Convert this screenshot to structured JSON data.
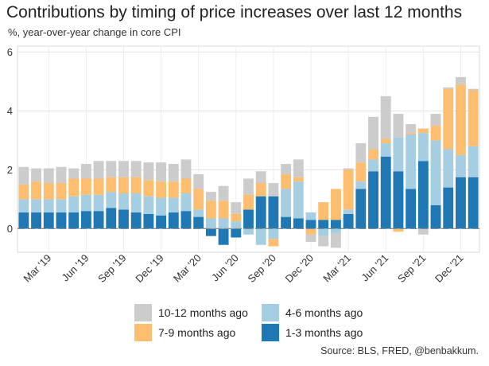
{
  "chart_data": {
    "type": "bar",
    "stacked": true,
    "title": "Contributions by timing of price increases over last 12 months",
    "subtitle": "%, year-over-year change in core CPI",
    "source": "Source: BLS, FRED, @benbakkum.",
    "ylim": [
      -0.8,
      6.2
    ],
    "yticks": [
      0,
      2,
      4,
      6
    ],
    "grid": true,
    "legend_position": "bottom",
    "x_tick_labels": [
      {
        "label": "Mar '19",
        "index": 2
      },
      {
        "label": "Jun '19",
        "index": 5
      },
      {
        "label": "Sep '19",
        "index": 8
      },
      {
        "label": "Dec '19",
        "index": 11
      },
      {
        "label": "Mar '20",
        "index": 14
      },
      {
        "label": "Jun '20",
        "index": 17
      },
      {
        "label": "Sep '20",
        "index": 20
      },
      {
        "label": "Dec '20",
        "index": 23
      },
      {
        "label": "Mar '21",
        "index": 26
      },
      {
        "label": "Jun '21",
        "index": 29
      },
      {
        "label": "Sep '21",
        "index": 32
      },
      {
        "label": "Dec '21",
        "index": 35
      }
    ],
    "categories": [
      "2019-01",
      "2019-02",
      "2019-03",
      "2019-04",
      "2019-05",
      "2019-06",
      "2019-07",
      "2019-08",
      "2019-09",
      "2019-10",
      "2019-11",
      "2019-12",
      "2020-01",
      "2020-02",
      "2020-03",
      "2020-04",
      "2020-05",
      "2020-06",
      "2020-07",
      "2020-08",
      "2020-09",
      "2020-10",
      "2020-11",
      "2020-12",
      "2021-01",
      "2021-02",
      "2021-03",
      "2021-04",
      "2021-05",
      "2021-06",
      "2021-07",
      "2021-08",
      "2021-09",
      "2021-10",
      "2021-11",
      "2021-12",
      "2022-01"
    ],
    "series": [
      {
        "name": "1-3 months ago",
        "color": "#1f78b4",
        "values": [
          0.55,
          0.55,
          0.55,
          0.55,
          0.55,
          0.6,
          0.6,
          0.7,
          0.65,
          0.55,
          0.5,
          0.45,
          0.55,
          0.6,
          0.4,
          -0.25,
          -0.55,
          -0.3,
          0.65,
          1.1,
          1.1,
          0.4,
          0.35,
          0.3,
          0.3,
          0.3,
          0.5,
          1.35,
          1.95,
          2.45,
          1.95,
          1.35,
          2.3,
          0.8,
          1.4,
          1.75,
          1.75
        ]
      },
      {
        "name": "4-6 months ago",
        "color": "#a6cee3",
        "values": [
          0.45,
          0.45,
          0.45,
          0.45,
          0.55,
          0.55,
          0.55,
          0.55,
          0.55,
          0.65,
          0.6,
          0.6,
          0.5,
          0.6,
          0.25,
          0.35,
          0.35,
          0.25,
          -0.2,
          -0.55,
          -0.35,
          0.95,
          1.25,
          0.25,
          -0.25,
          -0.15,
          0.15,
          0.25,
          0.4,
          0.45,
          1.15,
          1.85,
          0.95,
          2.2,
          1.3,
          0.75,
          1.05
        ]
      },
      {
        "name": "7-9 months ago",
        "color": "#fdbf6f",
        "values": [
          0.5,
          0.6,
          0.55,
          0.55,
          0.6,
          0.55,
          0.55,
          0.5,
          0.55,
          0.55,
          0.55,
          0.55,
          0.55,
          0.5,
          0.7,
          0.6,
          0.6,
          0.25,
          0.5,
          0.45,
          -0.25,
          0.5,
          0.15,
          -0.2,
          0.6,
          1.05,
          1.35,
          0.65,
          0.35,
          0.15,
          -0.1,
          0.05,
          0.15,
          0.5,
          2.05,
          2.4,
          1.9
        ]
      },
      {
        "name": "10-12 months ago",
        "color": "#cccccc",
        "values": [
          0.6,
          0.45,
          0.5,
          0.55,
          0.35,
          0.5,
          0.6,
          0.55,
          0.55,
          0.55,
          0.6,
          0.65,
          0.6,
          0.65,
          0.5,
          0.3,
          0.5,
          0.4,
          0.55,
          0.4,
          0.45,
          0.35,
          0.6,
          -0.25,
          -0.35,
          -0.5,
          0.05,
          0.65,
          1.1,
          1.45,
          0.8,
          0.3,
          -0.2,
          0.4,
          0.05,
          0.25,
          0.05
        ]
      }
    ]
  },
  "legend": [
    {
      "label": "10-12 months ago",
      "color": "#cccccc"
    },
    {
      "label": "4-6 months ago",
      "color": "#a6cee3"
    },
    {
      "label": "7-9 months ago",
      "color": "#fdbf6f"
    },
    {
      "label": "1-3 months ago",
      "color": "#1f78b4"
    }
  ]
}
